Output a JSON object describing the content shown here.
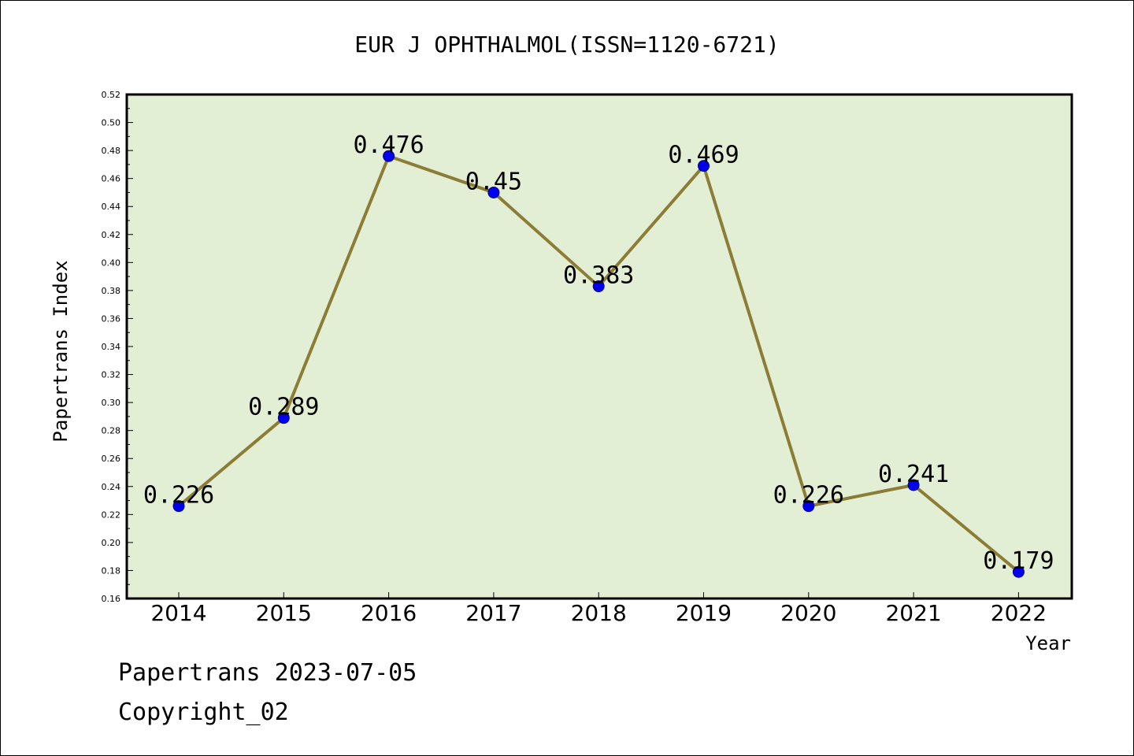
{
  "chart_data": {
    "type": "line",
    "title": "EUR J OPHTHALMOL(ISSN=1120-6721)",
    "xlabel": "Year",
    "ylabel": "Papertrans Index",
    "categories": [
      "2014",
      "2015",
      "2016",
      "2017",
      "2018",
      "2019",
      "2020",
      "2021",
      "2022"
    ],
    "values": [
      0.226,
      0.289,
      0.476,
      0.45,
      0.383,
      0.469,
      0.226,
      0.241,
      0.179
    ],
    "data_labels": [
      "0.226",
      "0.289",
      "0.476",
      "0.45",
      "0.383",
      "0.469",
      "0.226",
      "0.241",
      "0.179"
    ],
    "ylim": [
      0.16,
      0.52
    ],
    "yticks": [
      "0.16",
      "0.18",
      "0.20",
      "0.22",
      "0.24",
      "0.26",
      "0.28",
      "0.30",
      "0.32",
      "0.34",
      "0.36",
      "0.38",
      "0.40",
      "0.42",
      "0.44",
      "0.46",
      "0.48",
      "0.50",
      "0.52"
    ],
    "grid": false,
    "colors": {
      "plot_background": "#e2efd4",
      "line": "#8b7d35",
      "marker": "#0000ee"
    }
  },
  "footer": {
    "line1": "Papertrans 2023-07-05",
    "line2": "Copyright_02"
  }
}
